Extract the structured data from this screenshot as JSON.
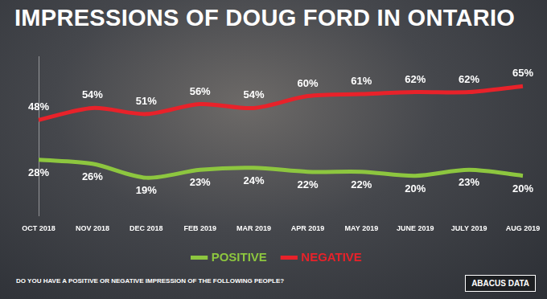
{
  "chart_data": {
    "type": "line",
    "title": "IMPRESSIONS OF DOUG FORD IN ONTARIO",
    "caption": "DO YOU HAVE A POSITIVE OR NEGATIVE IMPRESSION OF THE FOLLOWING PEOPLE?",
    "source": "ABACUS DATA",
    "categories": [
      "OCT 2018",
      "NOV 2018",
      "DEC 2018",
      "FEB 2019",
      "MAR 2019",
      "APR 2019",
      "MAY 2019",
      "JUNE 2019",
      "JULY 2019",
      "AUG 2019"
    ],
    "series": [
      {
        "name": "POSITIVE",
        "color": "#8dc63f",
        "values": [
          28,
          26,
          19,
          23,
          24,
          22,
          22,
          20,
          23,
          20
        ],
        "value_labels": [
          "28%",
          "26%",
          "19%",
          "23%",
          "24%",
          "22%",
          "22%",
          "20%",
          "23%",
          "20%"
        ]
      },
      {
        "name": "NEGATIVE",
        "color": "#e8222a",
        "values": [
          48,
          54,
          51,
          56,
          54,
          60,
          61,
          62,
          62,
          65
        ],
        "value_labels": [
          "48%",
          "54%",
          "51%",
          "56%",
          "54%",
          "60%",
          "61%",
          "62%",
          "62%",
          "65%"
        ]
      }
    ],
    "ylim": [
      0,
      80
    ],
    "grid": false,
    "legend": "bottom",
    "data_labels": true,
    "tick_labels": "x"
  }
}
